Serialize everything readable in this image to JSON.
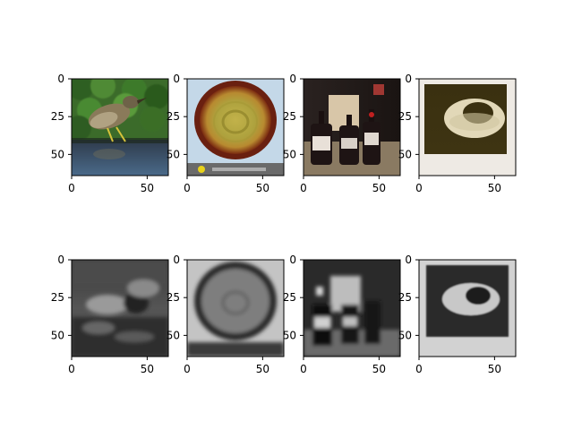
{
  "chart_data": {
    "type": "image_grid",
    "rows": 2,
    "cols": 4,
    "image_size": [
      64,
      64
    ],
    "xlim": [
      0,
      64
    ],
    "ylim": [
      64,
      0
    ],
    "x_ticks": [
      0,
      50
    ],
    "y_ticks": [
      0,
      25,
      50
    ],
    "panels": [
      {
        "row": 0,
        "col": 0,
        "content": "bird-by-water-color",
        "x_ticks": [
          0,
          50
        ],
        "y_ticks": [
          0,
          25,
          50
        ]
      },
      {
        "row": 0,
        "col": 1,
        "content": "food-in-bowl-color",
        "x_ticks": [
          0,
          50
        ],
        "y_ticks": [
          0,
          25,
          50
        ]
      },
      {
        "row": 0,
        "col": 2,
        "content": "bottles-on-table-color",
        "x_ticks": [
          0,
          50
        ],
        "y_ticks": [
          0,
          25,
          50
        ]
      },
      {
        "row": 0,
        "col": 3,
        "content": "ring-object-color",
        "x_ticks": [
          0,
          50
        ],
        "y_ticks": [
          0,
          25,
          50
        ]
      },
      {
        "row": 1,
        "col": 0,
        "content": "bird-by-water-grayscale-reconstruction",
        "x_ticks": [
          0,
          50
        ],
        "y_ticks": [
          0,
          25,
          50
        ]
      },
      {
        "row": 1,
        "col": 1,
        "content": "food-in-bowl-grayscale-reconstruction",
        "x_ticks": [
          0,
          50
        ],
        "y_ticks": [
          0,
          25,
          50
        ]
      },
      {
        "row": 1,
        "col": 2,
        "content": "bottles-on-table-grayscale-reconstruction",
        "x_ticks": [
          0,
          50
        ],
        "y_ticks": [
          0,
          25,
          50
        ]
      },
      {
        "row": 1,
        "col": 3,
        "content": "ring-object-grayscale-reconstruction",
        "x_ticks": [
          0,
          50
        ],
        "y_ticks": [
          0,
          25,
          50
        ]
      }
    ]
  }
}
